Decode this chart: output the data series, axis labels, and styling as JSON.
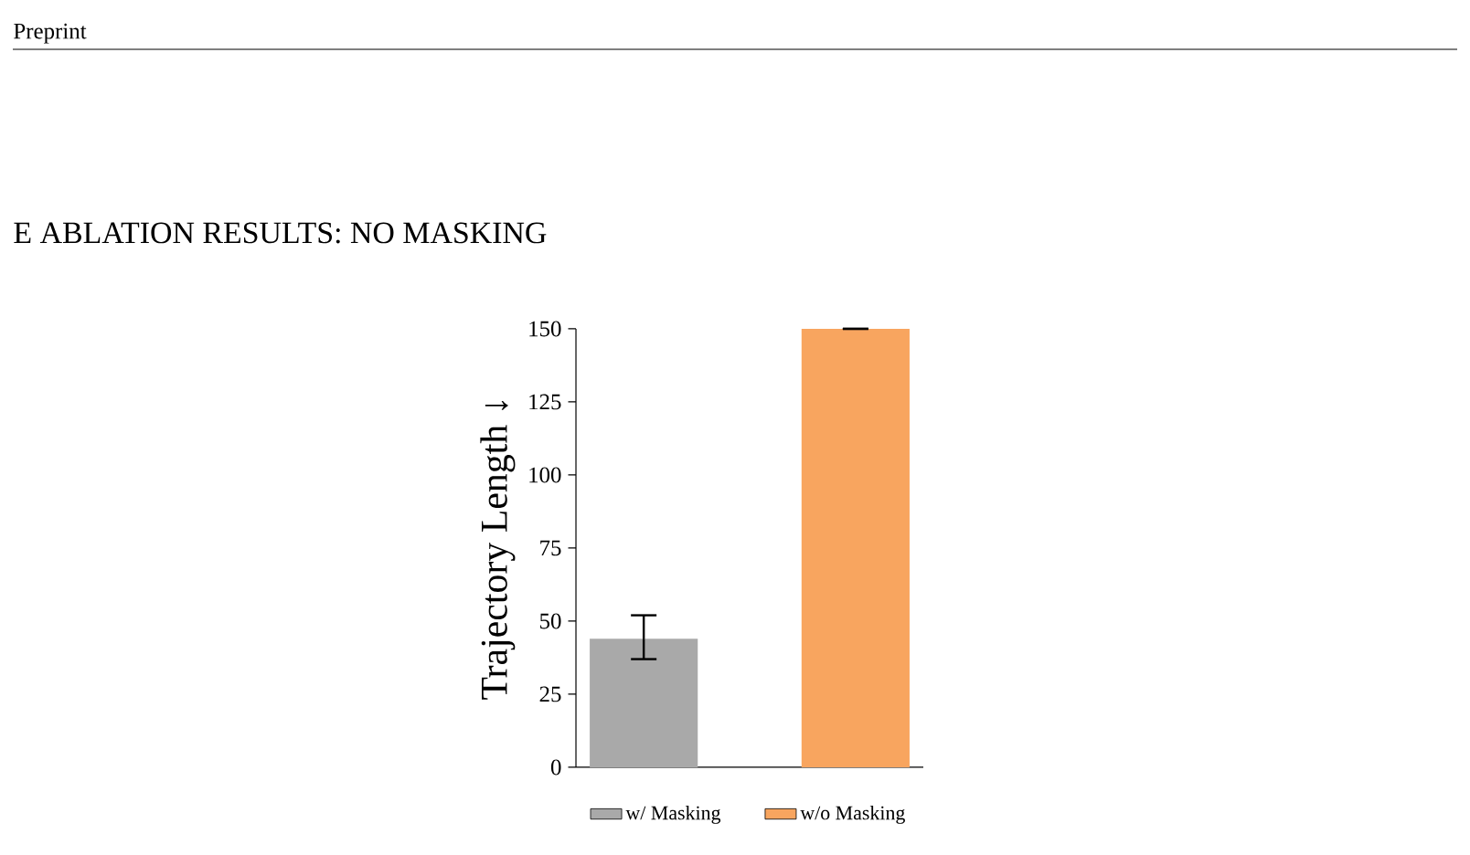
{
  "chart_data": {
    "type": "bar",
    "title": "E ABLATION RESULTS: NO MASKING",
    "ylabel": "Trajectory Length ↓",
    "annotations": [
      "Preprint"
    ],
    "categories": [
      null,
      null
    ],
    "series": [
      {
        "name": "w/ Masking",
        "color": "#a9a9a9",
        "values": [
          44,
          null
        ],
        "errors": [
          [
            37,
            52
          ],
          null
        ]
      },
      {
        "name": "w/o Masking",
        "color": "#f8a55f",
        "values": [
          null,
          150
        ],
        "errors": [
          null,
          0
        ]
      }
    ],
    "ylim": [
      0,
      150
    ],
    "yticks": [
      0,
      25,
      50,
      75,
      100,
      125,
      150
    ],
    "grid": false,
    "legend": "bottom"
  }
}
